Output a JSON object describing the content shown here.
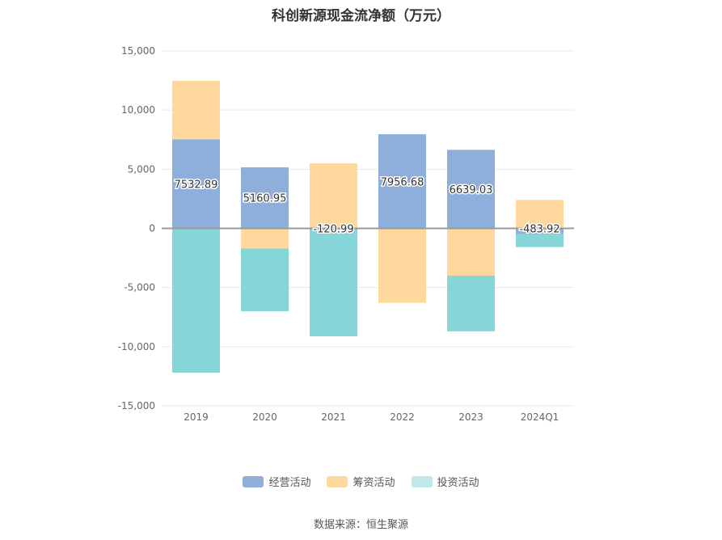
{
  "chart_data": {
    "type": "bar",
    "stacked": true,
    "title": "科创新源现金流净额（万元）",
    "categories": [
      "2019",
      "2020",
      "2021",
      "2022",
      "2023",
      "2024Q1"
    ],
    "series": [
      {
        "name": "经营活动",
        "color": "#8eaedb",
        "values": [
          7532.89,
          5160.95,
          -120.99,
          7956.68,
          6639.03,
          -483.92
        ]
      },
      {
        "name": "筹资活动",
        "color": "#fed89c",
        "values": [
          4950,
          -1700,
          5500,
          -6300,
          -4000,
          2400
        ]
      },
      {
        "name": "投资活动",
        "color": "#86d5d9",
        "values": [
          -12200,
          -5300,
          -9000,
          0,
          -4700,
          -1100
        ]
      }
    ],
    "data_labels": [
      "7532.89",
      "5160.95",
      "-120.99",
      "7956.68",
      "6639.03",
      "-483.92"
    ],
    "ylim": [
      -15000,
      15000
    ],
    "yticks": [
      15000,
      10000,
      5000,
      0,
      -5000,
      -10000,
      -15000
    ],
    "ytick_labels": [
      "15,000",
      "10,000",
      "5,000",
      "0",
      "-5,000",
      "-10,000",
      "-15,000"
    ],
    "grid": true,
    "legend_position": "bottom",
    "legend_swatch_colors": [
      "#8eaedb",
      "#fed89c",
      "#c1e8ea"
    ]
  },
  "source": "数据来源：恒生聚源"
}
